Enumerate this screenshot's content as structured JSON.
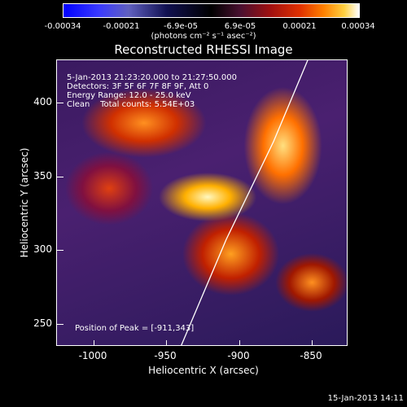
{
  "colorbar": {
    "ticks": [
      "-0.00034",
      "-0.00021",
      "-6.9e-05",
      "6.9e-05",
      "0.00021",
      "0.00034"
    ],
    "units": "(photons cm⁻² s⁻¹ asec⁻²)"
  },
  "title": "Reconstructed RHESSI Image",
  "info": {
    "time": "5-Jan-2013 21:23:20.000 to 21:27:50.000",
    "detectors": "Detectors: 3F 5F 6F 7F 8F 9F, Att 0",
    "energy": "Energy Range: 12.0 - 25.0 keV",
    "clean": "Clean    Total counts: 5.54E+03"
  },
  "peak": "Position of Peak = [-911,343]",
  "axes": {
    "xlabel": "Heliocentric X (arcsec)",
    "ylabel": "Heliocentric Y (arcsec)",
    "xticks": [
      "-1000",
      "-950",
      "-900",
      "-850"
    ],
    "yticks": [
      "400",
      "350",
      "300",
      "250"
    ]
  },
  "date": "15-Jan-2013 14:11"
}
